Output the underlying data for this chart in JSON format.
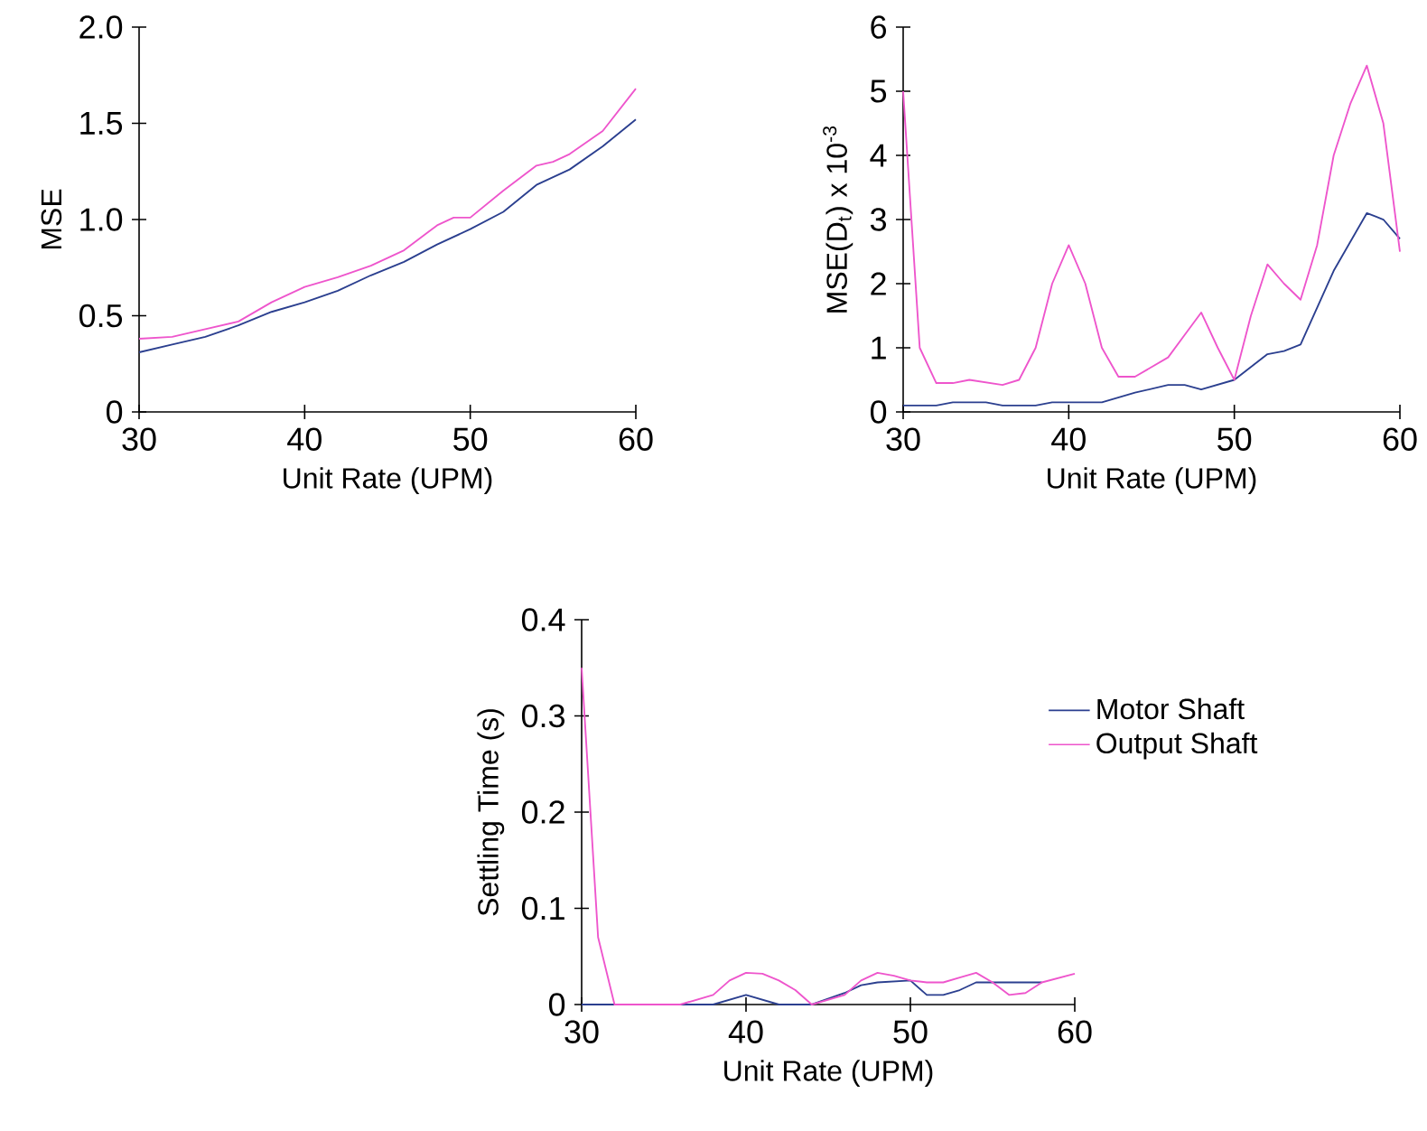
{
  "chart_data": [
    {
      "type": "line",
      "xlabel": "Unit Rate (UPM)",
      "ylabel": "MSE",
      "xlim": [
        30,
        60
      ],
      "ylim": [
        0,
        2
      ],
      "xticks": [
        30,
        40,
        50,
        60
      ],
      "yticks": [
        0,
        0.5,
        {
          "value": 1,
          "label": "1.0"
        },
        1.5,
        {
          "value": 2,
          "label": "2.0"
        }
      ],
      "line_style": "solid",
      "series": [
        {
          "color": "#2b3f8f",
          "x": [
            30,
            32,
            34,
            36,
            38,
            40,
            42,
            44,
            46,
            48,
            50,
            52,
            54,
            56,
            58,
            60
          ],
          "values": [
            0.31,
            0.35,
            0.39,
            0.45,
            0.52,
            0.57,
            0.63,
            0.71,
            0.78,
            0.87,
            0.95,
            1.04,
            1.18,
            1.26,
            1.38,
            1.52
          ]
        },
        {
          "color": "#ee55cc",
          "x": [
            30,
            32,
            34,
            36,
            38,
            40,
            42,
            44,
            46,
            48,
            49,
            50,
            52,
            54,
            55,
            56,
            58,
            60
          ],
          "values": [
            0.38,
            0.39,
            0.43,
            0.47,
            0.57,
            0.65,
            0.7,
            0.76,
            0.84,
            0.97,
            1.01,
            1.01,
            1.15,
            1.28,
            1.3,
            1.34,
            1.46,
            1.68
          ]
        }
      ]
    },
    {
      "type": "line",
      "xlabel": "Unit Rate (UPM)",
      "ylabel": "MSE(D$_{t}$) x 10$^{-3}$",
      "xlim": [
        30,
        60
      ],
      "ylim": [
        0,
        6
      ],
      "xticks": [
        30,
        40,
        50,
        60
      ],
      "yticks": [
        0,
        1,
        2,
        3,
        4,
        5,
        6
      ],
      "line_style": "solid",
      "series": [
        {
          "color": "#2b3f8f",
          "x": [
            30,
            32,
            33,
            35,
            36,
            38,
            39,
            42,
            44,
            46,
            47,
            48,
            50,
            52,
            53,
            54,
            56,
            58,
            59,
            60
          ],
          "values": [
            0.1,
            0.1,
            0.15,
            0.15,
            0.1,
            0.1,
            0.15,
            0.15,
            0.3,
            0.42,
            0.42,
            0.35,
            0.5,
            0.9,
            0.95,
            1.05,
            2.2,
            3.1,
            3.0,
            2.7
          ]
        },
        {
          "color": "#ee55cc",
          "x": [
            30,
            31,
            32,
            33,
            34,
            36,
            37,
            38,
            39,
            40,
            41,
            42,
            43,
            44,
            46,
            47,
            48,
            49,
            50,
            51,
            52,
            53,
            54,
            55,
            56,
            57,
            58,
            59,
            60
          ],
          "values": [
            5.0,
            1.0,
            0.45,
            0.45,
            0.5,
            0.42,
            0.5,
            1.0,
            2.0,
            2.6,
            2.0,
            1.0,
            0.55,
            0.55,
            0.85,
            1.2,
            1.55,
            1.0,
            0.5,
            1.5,
            2.3,
            2.0,
            1.75,
            2.6,
            4.0,
            4.8,
            5.4,
            4.5,
            2.5
          ]
        }
      ]
    },
    {
      "type": "line",
      "xlabel": "Unit Rate (UPM)",
      "ylabel": "Settling Time (s)",
      "xlim": [
        30,
        60
      ],
      "ylim": [
        0,
        0.4
      ],
      "xticks": [
        30,
        40,
        50,
        60
      ],
      "yticks": [
        0,
        0.1,
        0.2,
        0.3,
        0.4
      ],
      "line_style": "solid",
      "legend": "right",
      "series": [
        {
          "name": "Motor Shaft",
          "color": "#2b3f8f",
          "x": [
            30,
            38,
            40,
            42,
            44,
            46,
            47,
            48,
            50,
            51,
            52,
            53,
            54,
            58
          ],
          "values": [
            0,
            0,
            0.01,
            0,
            0,
            0.012,
            0.02,
            0.023,
            0.025,
            0.01,
            0.01,
            0.015,
            0.023,
            0.023
          ]
        },
        {
          "name": "Output Shaft",
          "color": "#ee55cc",
          "x": [
            30,
            31,
            32,
            36,
            38,
            39,
            40,
            41,
            42,
            43,
            44,
            45,
            46,
            47,
            48,
            49,
            50,
            51,
            52,
            53,
            54,
            55,
            56,
            57,
            58,
            60
          ],
          "values": [
            0.35,
            0.07,
            0,
            0,
            0.01,
            0.025,
            0.033,
            0.032,
            0.025,
            0.015,
            0,
            0.005,
            0.01,
            0.025,
            0.033,
            0.03,
            0.025,
            0.023,
            0.023,
            0.028,
            0.033,
            0.023,
            0.01,
            0.012,
            0.023,
            0.032
          ]
        }
      ]
    }
  ]
}
